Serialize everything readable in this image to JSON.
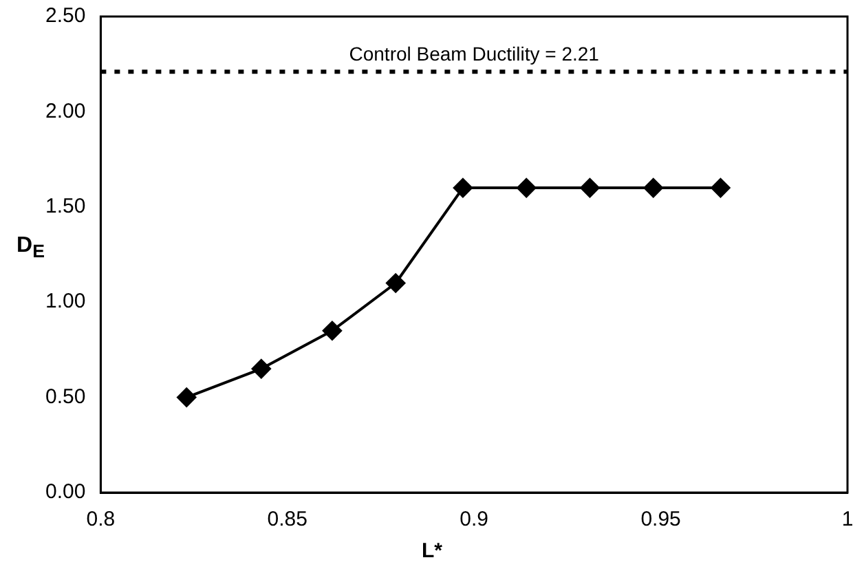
{
  "chart_data": {
    "type": "line",
    "xlabel": "L*",
    "ylabel": "D$_{E}$",
    "x": [
      0.823,
      0.843,
      0.862,
      0.879,
      0.897,
      0.914,
      0.931,
      0.948,
      0.966
    ],
    "series": [
      {
        "color": "#000000",
        "values": [
          0.5,
          0.65,
          0.85,
          1.1,
          1.6,
          1.6,
          1.6,
          1.6,
          1.6
        ]
      }
    ],
    "xlim": [
      0.8,
      1
    ],
    "xticks": [
      0.8,
      0.85,
      0.9,
      0.95,
      1
    ],
    "ylim": [
      0,
      2.5
    ],
    "yticks": [
      {
        "value": 0,
        "label": "0.00"
      },
      {
        "value": 0.5,
        "label": "0.50"
      },
      {
        "value": 1,
        "label": "1.00"
      },
      {
        "value": 1.5,
        "label": "1.50"
      },
      {
        "value": 2,
        "label": "2.00"
      },
      {
        "value": 2.5,
        "label": "2.50"
      }
    ],
    "ref_lines": [
      {
        "axis": "y",
        "value": 2.21,
        "label": "Control Beam Ductility = 2.21",
        "color": "#000000",
        "line_style": "dotted"
      }
    ],
    "grid": false,
    "legend": false,
    "marker": "diamond",
    "line_style": "solid"
  }
}
